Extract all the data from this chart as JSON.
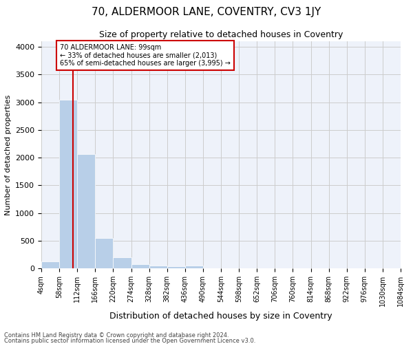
{
  "title": "70, ALDERMOOR LANE, COVENTRY, CV3 1JY",
  "subtitle": "Size of property relative to detached houses in Coventry",
  "xlabel": "Distribution of detached houses by size in Coventry",
  "ylabel": "Number of detached properties",
  "footnote1": "Contains HM Land Registry data © Crown copyright and database right 2024.",
  "footnote2": "Contains public sector information licensed under the Open Government Licence v3.0.",
  "bar_edges": [
    4,
    58,
    112,
    166,
    220,
    274,
    328,
    382,
    436,
    490,
    544,
    598,
    652,
    706,
    760,
    814,
    868,
    922,
    976,
    1030,
    1084
  ],
  "bar_heights": [
    130,
    3050,
    2060,
    545,
    200,
    75,
    55,
    35,
    55,
    0,
    0,
    0,
    0,
    0,
    0,
    0,
    0,
    0,
    0,
    0
  ],
  "bar_color": "#b8cfe8",
  "property_size": 99,
  "property_line_color": "#cc0000",
  "annotation_text": "70 ALDERMOOR LANE: 99sqm\n← 33% of detached houses are smaller (2,013)\n65% of semi-detached houses are larger (3,995) →",
  "annotation_box_color": "#cc0000",
  "ylim": [
    0,
    4100
  ],
  "yticks": [
    0,
    500,
    1000,
    1500,
    2000,
    2500,
    3000,
    3500,
    4000
  ],
  "grid_color": "#cccccc",
  "background_color": "#eef2fa",
  "title_fontsize": 11,
  "subtitle_fontsize": 9,
  "tick_label_fontsize": 7,
  "ylabel_fontsize": 8,
  "xlabel_fontsize": 9,
  "footnote_fontsize": 6
}
